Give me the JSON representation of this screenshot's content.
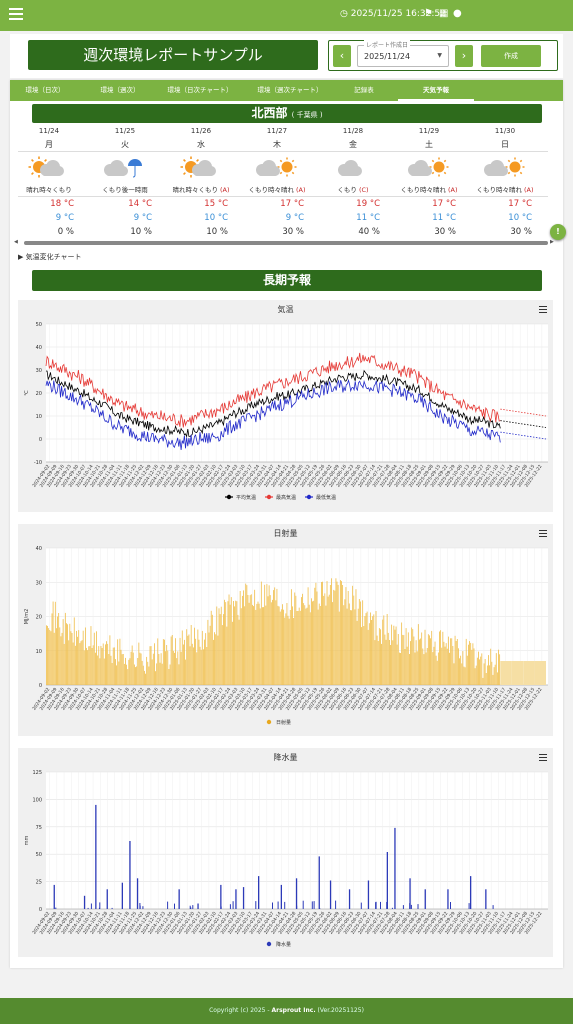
{
  "topbar": {
    "datetime": "2025/11/25 16:32:52"
  },
  "header": {
    "title": "週次環境レポートサンプル",
    "date_label": "レポート作成日",
    "date_value": "2025/11/24",
    "create_label": "作成",
    "prev": "‹",
    "next": "›"
  },
  "tabs": [
    "環境（日次）",
    "環境（週次）",
    "環境（日次チャート）",
    "環境（週次チャート）",
    "記録表",
    "天気予報"
  ],
  "region": {
    "name": "北西部",
    "sub": "( 千葉県 )"
  },
  "forecast": [
    {
      "date": "11/24",
      "dow": "月",
      "icon": "sun-cloud",
      "text": "晴れ時々くもり",
      "rank": "",
      "hi": "18",
      "lo": "9",
      "rain": "0"
    },
    {
      "date": "11/25",
      "dow": "火",
      "icon": "cloud-umbrella",
      "text": "くもり後一時雨",
      "rank": "",
      "hi": "14",
      "lo": "9",
      "rain": "10"
    },
    {
      "date": "11/26",
      "dow": "水",
      "icon": "sun-cloud",
      "text": "晴れ時々くもり",
      "rank": "(A)",
      "hi": "15",
      "lo": "10",
      "rain": "10"
    },
    {
      "date": "11/27",
      "dow": "木",
      "icon": "cloud-sun",
      "text": "くもり時々晴れ",
      "rank": "(A)",
      "hi": "17",
      "lo": "9",
      "rain": "30"
    },
    {
      "date": "11/28",
      "dow": "金",
      "icon": "cloud",
      "text": "くもり",
      "rank": "(C)",
      "hi": "19",
      "lo": "11",
      "rain": "40"
    },
    {
      "date": "11/29",
      "dow": "土",
      "icon": "cloud-sun",
      "text": "くもり時々晴れ",
      "rank": "(A)",
      "hi": "17",
      "lo": "11",
      "rain": "30"
    },
    {
      "date": "11/30",
      "dow": "日",
      "icon": "cloud-sun",
      "text": "くもり時々晴れ",
      "rank": "(A)",
      "hi": "17",
      "lo": "10",
      "rain": "30"
    }
  ],
  "units": {
    "temp": "°C",
    "pct": "%"
  },
  "expander": "▶ 気温変化チャート",
  "long_title": "長期予報",
  "footer": {
    "pre": "Copyright (c) 2025 -",
    "brand": "Arsprout Inc.",
    "ver": "(Ver.20251125)"
  },
  "chart_data": [
    {
      "type": "line",
      "title": "気温",
      "ylabel": "℃",
      "ylim": [
        -10,
        50
      ],
      "yticks": [
        -10,
        0,
        10,
        20,
        30,
        40,
        50
      ],
      "x_ticks": [
        "2024-09-02",
        "2024-09-09",
        "2024-09-16",
        "2024-09-23",
        "2024-09-30",
        "2024-10-07",
        "2024-10-14",
        "2024-10-21",
        "2024-10-28",
        "2024-11-04",
        "2024-11-11",
        "2024-11-18",
        "2024-11-25",
        "2024-12-02",
        "2024-12-09",
        "2024-12-16",
        "2024-12-23",
        "2024-12-30",
        "2025-01-06",
        "2025-01-13",
        "2025-01-20",
        "2025-01-27",
        "2025-02-03",
        "2025-02-10",
        "2025-02-17",
        "2025-02-24",
        "2025-03-03",
        "2025-03-10",
        "2025-03-17",
        "2025-03-24",
        "2025-03-31",
        "2025-04-07",
        "2025-04-14",
        "2025-04-21",
        "2025-04-28",
        "2025-05-05",
        "2025-05-12",
        "2025-05-19",
        "2025-05-26",
        "2025-06-02",
        "2025-06-09",
        "2025-06-16",
        "2025-06-23",
        "2025-06-30",
        "2025-07-07",
        "2025-07-14",
        "2025-07-21",
        "2025-07-28",
        "2025-08-04",
        "2025-08-11",
        "2025-08-18",
        "2025-08-25",
        "2025-09-01",
        "2025-09-08",
        "2025-09-15",
        "2025-09-22",
        "2025-09-29",
        "2025-10-06",
        "2025-10-13",
        "2025-10-20",
        "2025-10-27",
        "2025-11-03",
        "2025-11-10",
        "2025-11-17",
        "2025-11-24",
        "2025-12-01",
        "2025-12-08",
        "2025-12-15",
        "2025-12-22"
      ],
      "series": [
        {
          "name": "平均気温",
          "color": "#000000",
          "weekly": [
            28,
            27,
            25,
            24,
            22,
            21,
            19,
            17,
            16,
            14,
            12,
            10,
            9,
            8,
            7,
            6,
            5,
            5,
            4,
            4,
            3,
            3,
            3,
            4,
            5,
            6,
            7,
            9,
            11,
            12,
            13,
            15,
            16,
            17,
            18,
            19,
            19,
            20,
            21,
            22,
            23,
            24,
            25,
            26,
            27,
            27,
            27,
            28,
            28,
            27,
            26,
            26,
            25,
            24,
            23,
            22,
            21,
            19,
            17,
            15,
            13,
            12,
            11,
            9,
            8,
            8,
            7,
            6,
            5
          ],
          "forecast": [
            8,
            7,
            6,
            5
          ]
        },
        {
          "name": "最高気温",
          "color": "#e53935",
          "weekly": [
            34,
            33,
            31,
            30,
            28,
            27,
            25,
            23,
            21,
            19,
            17,
            15,
            14,
            13,
            12,
            11,
            10,
            10,
            9,
            9,
            8,
            8,
            9,
            10,
            11,
            12,
            13,
            14,
            16,
            17,
            18,
            20,
            21,
            22,
            23,
            24,
            25,
            26,
            27,
            28,
            29,
            30,
            31,
            32,
            33,
            33,
            34,
            35,
            35,
            34,
            33,
            32,
            31,
            30,
            29,
            28,
            26,
            24,
            22,
            20,
            18,
            17,
            16,
            14,
            13,
            12,
            11,
            10,
            9
          ],
          "forecast": [
            13,
            12,
            11,
            10
          ]
        },
        {
          "name": "最低気温",
          "color": "#2129c9",
          "weekly": [
            24,
            23,
            21,
            20,
            18,
            17,
            15,
            13,
            11,
            9,
            7,
            5,
            4,
            3,
            2,
            1,
            0,
            0,
            -1,
            -1,
            -2,
            -1,
            -1,
            0,
            0,
            1,
            2,
            4,
            6,
            7,
            8,
            10,
            11,
            12,
            14,
            15,
            16,
            17,
            18,
            19,
            20,
            21,
            22,
            22,
            23,
            23,
            24,
            24,
            24,
            23,
            22,
            22,
            21,
            20,
            19,
            18,
            16,
            14,
            12,
            10,
            8,
            7,
            6,
            4,
            3,
            3,
            2,
            1,
            0
          ],
          "forecast": [
            3,
            2,
            1,
            0
          ]
        }
      ],
      "legend": "bottom"
    },
    {
      "type": "bar",
      "title": "日射量",
      "ylabel": "MJ/m2",
      "ylim": [
        0,
        40
      ],
      "yticks": [
        0,
        10,
        20,
        30,
        40
      ],
      "series": [
        {
          "name": "日射量",
          "color": "#f0c050",
          "weekly": [
            22,
            20,
            18,
            16,
            15,
            14,
            13,
            12,
            11,
            10,
            10,
            9,
            9,
            8,
            8,
            8,
            8,
            9,
            9,
            10,
            11,
            12,
            13,
            14,
            16,
            18,
            20,
            22,
            23,
            24,
            25,
            26,
            27,
            27,
            26,
            25,
            24,
            24,
            25,
            26,
            26,
            27,
            28,
            27,
            26,
            25,
            24,
            22,
            20,
            18,
            17,
            16,
            15,
            14,
            14,
            13,
            13,
            12,
            12,
            11,
            11,
            10,
            10,
            9,
            8,
            7,
            7,
            7,
            7
          ]
        }
      ],
      "forecast": [
        7,
        7,
        7,
        7
      ],
      "legend": "bottom"
    },
    {
      "type": "bar",
      "title": "降水量",
      "ylabel": "mm",
      "ylim": [
        0,
        125
      ],
      "yticks": [
        0,
        25,
        50,
        75,
        100,
        125
      ],
      "series": [
        {
          "name": "降水量",
          "color": "#2c3ab8",
          "spikes": [
            [
              0.02,
              22
            ],
            [
              0.1,
              12
            ],
            [
              0.13,
              95
            ],
            [
              0.16,
              18
            ],
            [
              0.2,
              24
            ],
            [
              0.22,
              62
            ],
            [
              0.24,
              28
            ],
            [
              0.35,
              18
            ],
            [
              0.4,
              5
            ],
            [
              0.46,
              22
            ],
            [
              0.5,
              18
            ],
            [
              0.52,
              20
            ],
            [
              0.56,
              30
            ],
            [
              0.62,
              22
            ],
            [
              0.66,
              28
            ],
            [
              0.72,
              48
            ],
            [
              0.75,
              26
            ],
            [
              0.8,
              18
            ],
            [
              0.85,
              26
            ],
            [
              0.9,
              52
            ],
            [
              0.92,
              74
            ],
            [
              0.96,
              28
            ],
            [
              1.0,
              18
            ],
            [
              1.06,
              18
            ],
            [
              1.12,
              30
            ],
            [
              1.16,
              18
            ]
          ]
        }
      ],
      "legend": "bottom"
    }
  ]
}
